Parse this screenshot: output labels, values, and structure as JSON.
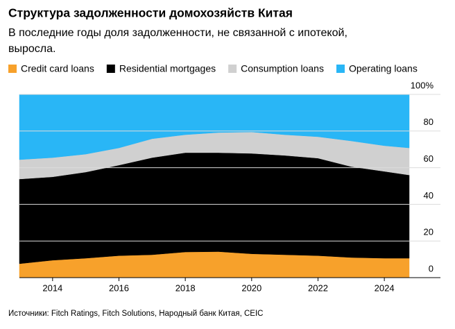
{
  "chart_data": {
    "type": "stacked_area",
    "title": "Структура задолженности домохозяйств Китая",
    "subtitle": "В последние годы доля задолженности, не связанной с ипотекой, выросла.",
    "source": "Источники: Fitch Ratings, Fitch Solutions, Народный банк Китая, CEIC",
    "x": [
      2013,
      2014,
      2015,
      2016,
      2017,
      2018,
      2019,
      2020,
      2021,
      2022,
      2023,
      2024,
      2024.75
    ],
    "series": [
      {
        "name": "Credit card loans",
        "color": "#f7a12b",
        "values": [
          7.6,
          9.5,
          10.6,
          12,
          12.5,
          14,
          14.2,
          13,
          12.5,
          12,
          11,
          10.6,
          10.6
        ]
      },
      {
        "name": "Residential mortgages",
        "color": "#000000",
        "values": [
          46.2,
          45.5,
          47,
          49.4,
          53,
          54.2,
          54,
          54.8,
          54.2,
          53.2,
          49.6,
          47.4,
          45.4
        ]
      },
      {
        "name": "Consumption loans",
        "color": "#d0d0d0",
        "values": [
          10.6,
          10.5,
          9.8,
          9.4,
          10.3,
          9.8,
          11,
          11.7,
          11.3,
          11.7,
          14,
          14,
          14.8
        ]
      },
      {
        "name": "Operating loans",
        "color": "#29b6f6",
        "values": [
          35.6,
          34.5,
          32.6,
          29.2,
          24.2,
          22,
          20.8,
          20.5,
          22,
          23.1,
          25.4,
          28,
          29.2
        ]
      }
    ],
    "xlim": [
      2013,
      2024.75
    ],
    "xticks": [
      2014,
      2016,
      2018,
      2020,
      2022,
      2024
    ],
    "ylim": [
      0,
      100
    ],
    "yticks": [
      0,
      20,
      40,
      60,
      80,
      {
        "value": 100,
        "label": "100%"
      }
    ],
    "grid": true
  }
}
